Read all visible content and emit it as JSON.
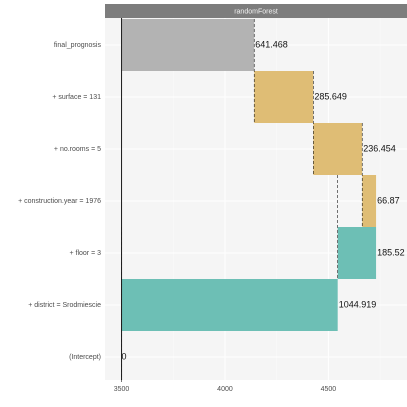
{
  "chart_data": {
    "type": "bar",
    "subtype": "waterfall-breakdown",
    "strip_title": "randomForest",
    "categories": [
      "final_prognosis",
      "+ surface = 131",
      "+ no.rooms = 5",
      "+ construction.year = 1976",
      "+ floor = 3",
      "+ district = Srodmiescie",
      "(Intercept)"
    ],
    "bars": [
      {
        "label": "final_prognosis",
        "start": 3500,
        "end": 4141.468,
        "value_text": "641.468",
        "color": "#b3b3b3"
      },
      {
        "label": "+ surface = 131",
        "start": 4141.468,
        "end": 4427.117,
        "value_text": "285.649",
        "color": "#dfbd75"
      },
      {
        "label": "+ no.rooms = 5",
        "start": 4427.117,
        "end": 4663.571,
        "value_text": "236.454",
        "color": "#dfbd75"
      },
      {
        "label": "+ construction.year = 1976",
        "start": 4663.571,
        "end": 4730.44,
        "value_text": "66.87",
        "color": "#dfbd75"
      },
      {
        "label": "+ floor = 3",
        "start": 4544.919,
        "end": 4730.44,
        "value_text": "185.52",
        "color": "#6dbfb5"
      },
      {
        "label": "+ district = Srodmiescie",
        "start": 3500,
        "end": 4544.919,
        "value_text": "1044.919",
        "color": "#6dbfb5"
      },
      {
        "label": "(Intercept)",
        "start": 3500,
        "end": 3500,
        "value_text": "0",
        "color": "#6dbfb5"
      }
    ],
    "xticks": [
      3500,
      4000,
      4500
    ],
    "xlim": [
      3420,
      4880
    ],
    "grid": true,
    "xlabel": "",
    "ylabel": ""
  }
}
